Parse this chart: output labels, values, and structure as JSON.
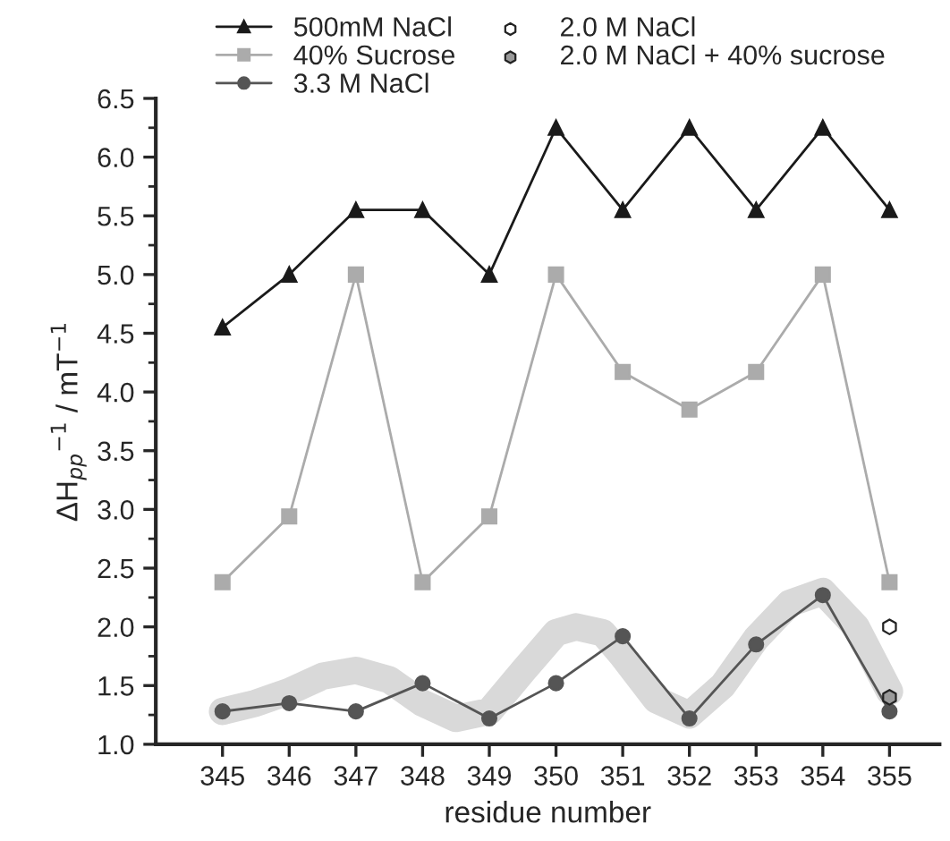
{
  "chart_data": {
    "type": "line",
    "xlabel": "residue number",
    "ylabel": "ΔH$_{pp}$$^{−1}$ / mT$^{−1}$",
    "x": [
      345,
      346,
      347,
      348,
      349,
      350,
      351,
      352,
      353,
      354,
      355
    ],
    "xlim": [
      344,
      355.75
    ],
    "xticks": [
      345,
      346,
      347,
      348,
      349,
      350,
      351,
      352,
      353,
      354,
      355
    ],
    "ylim": [
      1.0,
      6.5
    ],
    "yticks": [
      {
        "value": 1.0,
        "label": "1.0"
      },
      {
        "value": 1.5,
        "label": "1.5"
      },
      {
        "value": 2.0,
        "label": "2.0"
      },
      {
        "value": 2.5,
        "label": "2.5"
      },
      {
        "value": 3.0,
        "label": "3.0"
      },
      {
        "value": 3.5,
        "label": "3.5"
      },
      {
        "value": 4.0,
        "label": "4.0"
      },
      {
        "value": 4.5,
        "label": "4.5"
      },
      {
        "value": 5.0,
        "label": "5.0"
      },
      {
        "value": 5.5,
        "label": "5.5"
      },
      {
        "value": 6.0,
        "label": "6.0"
      },
      {
        "value": 6.5,
        "label": "6.5"
      }
    ],
    "grid": false,
    "legend": "top",
    "line_style": "solid",
    "series": [
      {
        "color": "#d9d9d9",
        "marker": "none",
        "x": [
          345,
          345.5,
          346,
          346.5,
          347,
          347.5,
          348,
          348.5,
          349,
          349.5,
          350,
          350.3,
          350.7,
          351,
          351.5,
          352,
          352.5,
          353,
          353.5,
          354,
          354.5,
          355
        ],
        "values": [
          1.28,
          1.35,
          1.45,
          1.58,
          1.63,
          1.55,
          1.35,
          1.22,
          1.28,
          1.62,
          1.95,
          2.0,
          1.95,
          1.75,
          1.38,
          1.25,
          1.5,
          1.9,
          2.2,
          2.3,
          2.0,
          1.45
        ]
      },
      {
        "name": "500mM NaCl",
        "color": "#1a1a1a",
        "marker": "triangle",
        "values": [
          4.55,
          5.0,
          5.55,
          5.55,
          5.0,
          6.25,
          5.55,
          6.25,
          5.55,
          6.25,
          5.55
        ]
      },
      {
        "name": "40% Sucrose",
        "color": "#ababab",
        "marker": "square",
        "values": [
          2.38,
          2.94,
          5.0,
          2.38,
          2.94,
          5.0,
          4.17,
          3.85,
          4.17,
          5.0,
          2.38
        ]
      },
      {
        "name": "3.3 M NaCl",
        "color": "#555555",
        "marker": "circle",
        "values": [
          1.28,
          1.35,
          1.28,
          1.52,
          1.22,
          1.52,
          1.92,
          1.22,
          1.85,
          2.27,
          1.28
        ]
      },
      {
        "name": "2.0 M NaCl",
        "type": "scatter",
        "color": "#ffffff",
        "x": [
          355
        ],
        "values": [
          2.0
        ]
      },
      {
        "name": "2.0 M NaCl + 40% sucrose",
        "type": "scatter",
        "color": "#9a9a9a",
        "x": [
          355
        ],
        "values": [
          1.4
        ]
      }
    ]
  }
}
